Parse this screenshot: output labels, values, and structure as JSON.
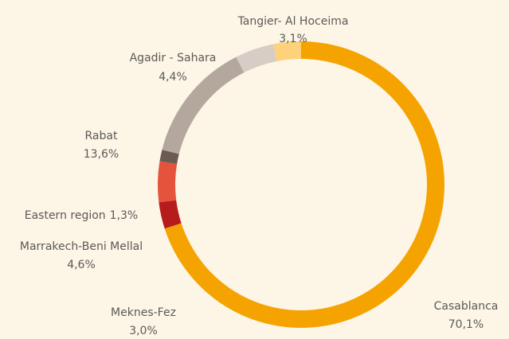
{
  "chart_data": {
    "type": "donut",
    "categories": [
      "Casablanca",
      "Meknes-Fez",
      "Marrakech-Beni Mellal",
      "Eastern region",
      "Rabat",
      "Agadir - Sahara",
      "Tangier- Al Hoceima"
    ],
    "values": [
      70.1,
      3.0,
      4.6,
      1.3,
      13.6,
      4.4,
      3.1
    ],
    "value_labels": [
      "70,1%",
      "3,0%",
      "4,6%",
      "1,3%",
      "13,6%",
      "4,4%",
      "3,1%"
    ],
    "colors": [
      "#f5a300",
      "#b71c1c",
      "#e5533c",
      "#6b5a52",
      "#b3a79e",
      "#d8cdc6",
      "#fdd27a"
    ]
  }
}
